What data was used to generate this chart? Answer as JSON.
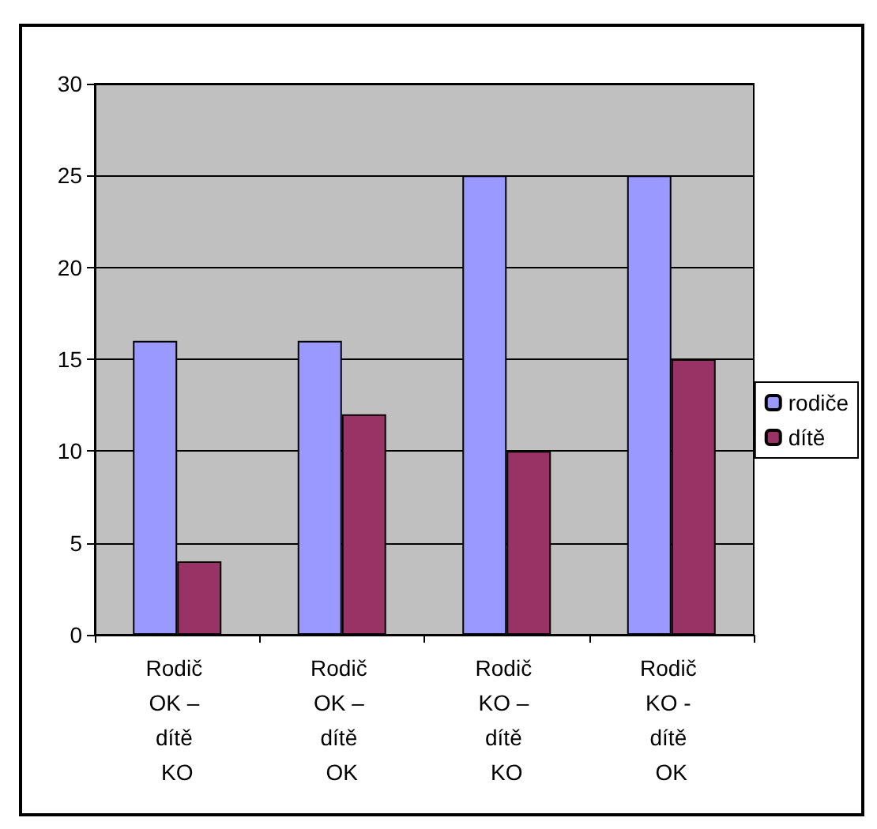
{
  "chart_data": {
    "type": "bar",
    "categories": [
      "Rodič OK – dítě KO",
      "Rodič OK – dítě OK",
      "Rodič KO – dítě KO",
      "Rodič KO - dítě OK"
    ],
    "series": [
      {
        "name": "rodiče",
        "color": "#9999ff",
        "values": [
          16,
          16,
          25,
          25
        ]
      },
      {
        "name": "dítě",
        "color": "#993366",
        "values": [
          4,
          12,
          10,
          15
        ]
      }
    ],
    "ylim": [
      0,
      30
    ],
    "yticks": [
      0,
      5,
      10,
      15,
      20,
      25,
      30
    ],
    "grid": "y",
    "legend": "right"
  }
}
